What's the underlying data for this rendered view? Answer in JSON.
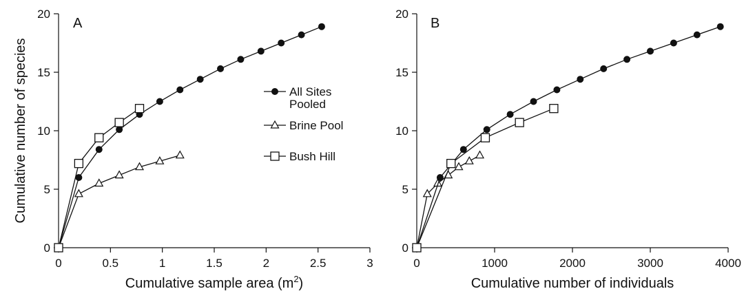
{
  "chart_data": [
    {
      "type": "line",
      "panel_label": "A",
      "xlabel": "Cumulative sample area (m",
      "xlabel_sup": "2",
      "xlabel_suffix": ")",
      "ylabel": "Cumulative number of species",
      "xlim": [
        0,
        3
      ],
      "ylim": [
        0,
        20
      ],
      "xticks": [
        0,
        0.5,
        1,
        1.5,
        2,
        2.5,
        3
      ],
      "xtick_labels": [
        "0",
        "0.5",
        "1",
        "1.5",
        "2",
        "2.5",
        "3"
      ],
      "yticks": [
        0,
        5,
        10,
        15,
        20
      ],
      "ytick_labels": [
        "0",
        "5",
        "10",
        "15",
        "20"
      ],
      "grid": false,
      "legend_placement": "right-middle",
      "series": [
        {
          "name": "All Sites Pooled",
          "marker": "filled-circle",
          "x": [
            0,
            0.195,
            0.39,
            0.585,
            0.78,
            0.975,
            1.17,
            1.365,
            1.56,
            1.755,
            1.95,
            2.145,
            2.34,
            2.535
          ],
          "y": [
            0,
            6.0,
            8.4,
            10.1,
            11.4,
            12.5,
            13.5,
            14.4,
            15.3,
            16.1,
            16.8,
            17.5,
            18.2,
            18.9
          ]
        },
        {
          "name": "Brine Pool",
          "marker": "open-triangle",
          "x": [
            0,
            0.195,
            0.39,
            0.585,
            0.78,
            0.975,
            1.17
          ],
          "y": [
            0,
            4.6,
            5.5,
            6.2,
            6.9,
            7.4,
            7.9
          ]
        },
        {
          "name": "Bush Hill",
          "marker": "open-square",
          "x": [
            0,
            0.195,
            0.39,
            0.585,
            0.78
          ],
          "y": [
            0,
            7.2,
            9.4,
            10.7,
            11.9
          ]
        }
      ]
    },
    {
      "type": "line",
      "panel_label": "B",
      "xlabel": "Cumulative number of individuals",
      "ylabel": "",
      "xlim": [
        0,
        4000
      ],
      "ylim": [
        0,
        20
      ],
      "xticks": [
        0,
        1000,
        2000,
        3000,
        4000
      ],
      "xtick_labels": [
        "0",
        "1000",
        "2000",
        "3000",
        "4000"
      ],
      "yticks": [
        0,
        5,
        10,
        15,
        20
      ],
      "ytick_labels": [
        "0",
        "5",
        "10",
        "15",
        "20"
      ],
      "grid": false,
      "series": [
        {
          "name": "All Sites Pooled",
          "marker": "filled-circle",
          "x": [
            0,
            300,
            600,
            900,
            1200,
            1500,
            1800,
            2100,
            2400,
            2700,
            3000,
            3300,
            3600,
            3900
          ],
          "y": [
            0,
            6.0,
            8.4,
            10.1,
            11.4,
            12.5,
            13.5,
            14.4,
            15.3,
            16.1,
            16.8,
            17.5,
            18.2,
            18.9
          ]
        },
        {
          "name": "Brine Pool",
          "marker": "open-triangle",
          "x": [
            0,
            135,
            270,
            405,
            540,
            675,
            810
          ],
          "y": [
            0,
            4.6,
            5.5,
            6.2,
            6.9,
            7.4,
            7.9
          ]
        },
        {
          "name": "Bush Hill",
          "marker": "open-square",
          "x": [
            0,
            440,
            880,
            1320,
            1760
          ],
          "y": [
            0,
            7.2,
            9.4,
            10.7,
            11.9
          ]
        }
      ]
    }
  ],
  "legend": {
    "entries": [
      {
        "label_lines": [
          "All Sites",
          "Pooled"
        ],
        "marker": "filled-circle"
      },
      {
        "label_lines": [
          "Brine Pool"
        ],
        "marker": "open-triangle"
      },
      {
        "label_lines": [
          "Bush Hill"
        ],
        "marker": "open-square"
      }
    ]
  }
}
